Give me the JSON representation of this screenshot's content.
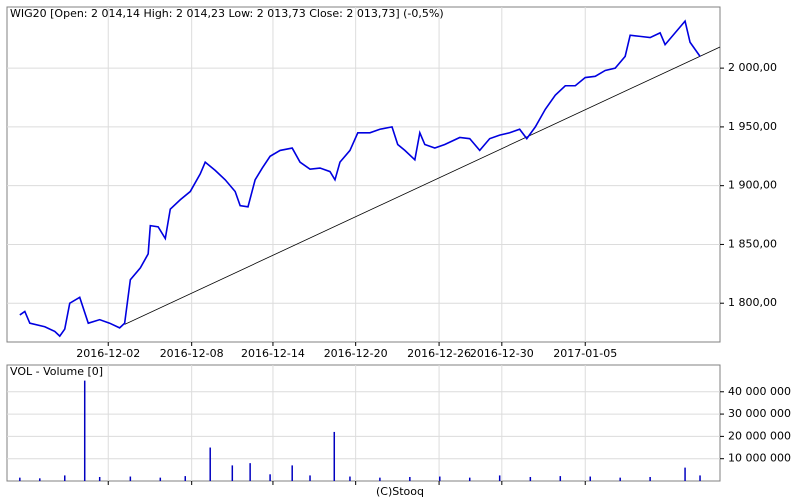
{
  "chart_data": [
    {
      "type": "line",
      "title": "WIG20 [Open: 2 014,14  High: 2 014,23  Low: 2 013,73  Close: 2 013,73] (-0,5%)",
      "x": [
        1.8,
        2.5,
        3.2,
        5.3,
        6.7,
        7.4,
        8.1,
        8.8,
        10.2,
        11.4,
        13.0,
        14.4,
        15.8,
        16.5,
        17.3,
        18.7,
        19.8,
        20.1,
        21.2,
        22.2,
        22.9,
        24.3,
        25.7,
        27.1,
        27.8,
        29.2,
        30.6,
        32.0,
        32.7,
        33.8,
        34.8,
        35.8,
        36.9,
        38.3,
        40.0,
        41.1,
        42.5,
        43.9,
        45.3,
        46.0,
        46.7,
        48.1,
        49.2,
        50.9,
        52.3,
        54.0,
        54.8,
        55.8,
        57.2,
        57.9,
        58.6,
        60.0,
        61.4,
        63.5,
        64.9,
        66.3,
        67.7,
        69.1,
        70.5,
        71.9,
        72.9,
        74.1,
        75.5,
        76.9,
        78.3,
        79.7,
        81.1,
        82.5,
        83.9,
        85.3,
        86.7,
        87.4,
        88.8,
        90.2,
        91.6,
        92.3,
        93.0,
        94.4,
        95.1,
        95.8,
        97.2
      ],
      "values": [
        1790,
        1793,
        1783,
        1780,
        1776,
        1772,
        1778,
        1800,
        1805,
        1783,
        1786,
        1783,
        1779,
        1783,
        1820,
        1830,
        1842,
        1866,
        1865,
        1855,
        1880,
        1888,
        1895,
        1910,
        1920,
        1913,
        1905,
        1895,
        1883,
        1882,
        1905,
        1915,
        1925,
        1930,
        1932,
        1920,
        1914,
        1915,
        1912,
        1905,
        1920,
        1930,
        1945,
        1945,
        1948,
        1950,
        1935,
        1930,
        1922,
        1945,
        1935,
        1932,
        1935,
        1941,
        1940,
        1930,
        1940,
        1943,
        1945,
        1948,
        1940,
        1950,
        1965,
        1977,
        1985,
        1985,
        1992,
        1993,
        1998,
        2000,
        2010,
        2028,
        2027,
        2026,
        2030,
        2020,
        2025,
        2035,
        2040,
        2022,
        2010
      ],
      "color": "#0000e0",
      "trendline": {
        "x": [
          16.5,
          100
        ],
        "values": [
          1782,
          2018
        ],
        "color": "#000000"
      },
      "xlim": [
        0,
        100
      ],
      "xticks": [
        {
          "value": 14.2,
          "label": "2016-12-02"
        },
        {
          "value": 25.9,
          "label": "2016-12-08"
        },
        {
          "value": 37.3,
          "label": "2016-12-14"
        },
        {
          "value": 48.9,
          "label": "2016-12-20"
        },
        {
          "value": 60.6,
          "label": "2016-12-26"
        },
        {
          "value": 69.4,
          "label": "2016-12-30"
        },
        {
          "value": 81.1,
          "label": "2017-01-05"
        }
      ],
      "ylim": [
        1767,
        2052
      ],
      "yticks": [
        {
          "value": 1800,
          "label": "1 800,00"
        },
        {
          "value": 1850,
          "label": "1 850,00"
        },
        {
          "value": 1900,
          "label": "1 900,00"
        },
        {
          "value": 1950,
          "label": "1 950,00"
        },
        {
          "value": 2000,
          "label": "2 000,00"
        }
      ],
      "grid": true
    },
    {
      "type": "bar",
      "title": "VOL - Volume [0]",
      "x": [
        1.8,
        4.6,
        8.1,
        10.9,
        13.0,
        17.3,
        21.5,
        25.0,
        28.5,
        31.6,
        34.1,
        36.9,
        40.0,
        42.5,
        45.9,
        48.1,
        52.3,
        56.5,
        60.7,
        64.9,
        69.1,
        73.4,
        77.6,
        81.8,
        86.0,
        90.2,
        95.1,
        97.2
      ],
      "values": [
        1500000,
        1200000,
        2500000,
        45000000,
        1800000,
        2000000,
        1500000,
        2200000,
        15000000,
        7000000,
        8000000,
        3000000,
        7000000,
        2500000,
        22000000,
        2000000,
        1500000,
        1800000,
        2000000,
        1500000,
        2500000,
        1800000,
        2200000,
        2000000,
        1500000,
        1800000,
        6000000,
        2500000
      ],
      "color": "#0000c0",
      "xlim": [
        0,
        100
      ],
      "xticks": [
        14.2,
        25.9,
        37.3,
        48.9,
        60.6,
        69.4,
        81.1
      ],
      "ylim": [
        0,
        52000000
      ],
      "yticks": [
        {
          "value": 10000000,
          "label": "10 000 000"
        },
        {
          "value": 20000000,
          "label": "20 000 000"
        },
        {
          "value": 30000000,
          "label": "30 000 000"
        },
        {
          "value": 40000000,
          "label": "40 000 000"
        }
      ],
      "grid": true
    }
  ],
  "footer": "(C)Stooq"
}
